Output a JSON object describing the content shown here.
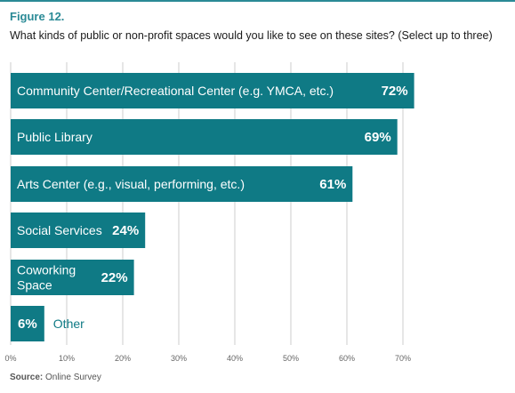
{
  "figure": {
    "label": "Figure 12.",
    "title": "What kinds of public or non-profit spaces would you like to see on these sites? (Select up to three)"
  },
  "colors": {
    "accent": "#2a8a96",
    "bar": "#0f7a85",
    "grid": "#cccccc"
  },
  "chart_data": {
    "type": "bar",
    "orientation": "horizontal",
    "categories": [
      "Community Center/Recreational Center (e.g. YMCA, etc.)",
      "Public Library",
      "Arts Center (e.g., visual, performing, etc.)",
      "Social Services",
      "Coworking Space",
      "Other"
    ],
    "category_lines": [
      [
        "Community Center/Recreational Center (e.g. YMCA, etc.)"
      ],
      [
        "Public Library"
      ],
      [
        "Arts Center (e.g., visual, performing, etc.)"
      ],
      [
        "Social Services"
      ],
      [
        "Coworking",
        "Space"
      ],
      [
        "Other"
      ]
    ],
    "values": [
      72,
      69,
      61,
      24,
      22,
      6
    ],
    "value_labels": [
      "72%",
      "69%",
      "61%",
      "24%",
      "22%",
      "6%"
    ],
    "xlim": [
      0,
      70
    ],
    "xticks": [
      0,
      10,
      20,
      30,
      40,
      50,
      60,
      70
    ],
    "xtick_labels": [
      "0%",
      "10%",
      "20%",
      "30%",
      "40%",
      "50%",
      "60%",
      "70%"
    ],
    "grid": true,
    "title": "",
    "xlabel": "",
    "ylabel": ""
  },
  "source": {
    "label": "Source:",
    "text": "Online Survey"
  }
}
